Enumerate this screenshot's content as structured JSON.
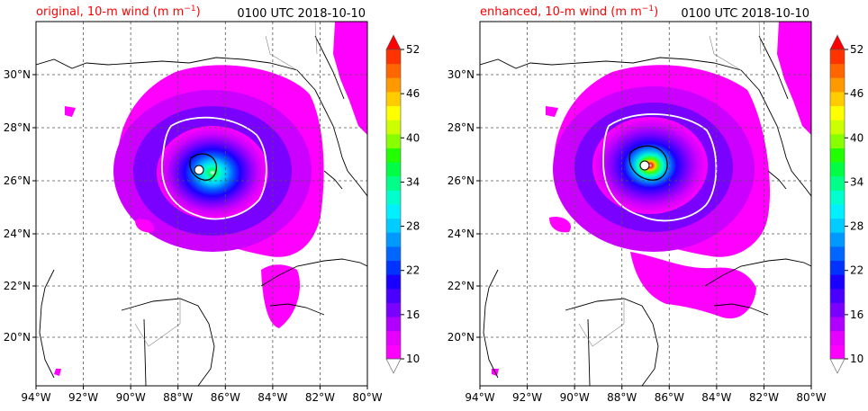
{
  "panels": [
    {
      "title_left": "original, 10-m wind (m m",
      "title_unit_sup": "−1",
      "title_unit_close": ")",
      "title_right": "0100 UTC 2018-10-10",
      "variant": "original"
    },
    {
      "title_left": "enhanced, 10-m wind (m m",
      "title_unit_sup": "−1",
      "title_unit_close": ")",
      "title_right": "0100 UTC 2018-10-10",
      "variant": "enhanced"
    }
  ],
  "axes": {
    "x_ticks": [
      "94°W",
      "92°W",
      "90°W",
      "88°W",
      "86°W",
      "84°W",
      "82°W",
      "80°W"
    ],
    "y_ticks": [
      "30°N",
      "28°N",
      "26°N",
      "24°N",
      "22°N",
      "20°N"
    ]
  },
  "colorbar": {
    "tick_labels": [
      "10",
      "16",
      "22",
      "28",
      "34",
      "40",
      "46",
      "52"
    ],
    "colors": [
      "#ff00ff",
      "#e600ff",
      "#b000ff",
      "#7a00ff",
      "#4a00ff",
      "#1a00ff",
      "#0033ff",
      "#0066ff",
      "#0099ff",
      "#00ccff",
      "#00f0ff",
      "#00ffcc",
      "#00ff88",
      "#00ff44",
      "#22ff00",
      "#88ff00",
      "#ccff00",
      "#ffff00",
      "#ffcc00",
      "#ff9900",
      "#ff6600",
      "#ff3300"
    ],
    "under_color": "#ffffff",
    "over_color": "#ff0000"
  },
  "colors": {
    "title_left": "#ff0000",
    "title_right": "#000000"
  }
}
